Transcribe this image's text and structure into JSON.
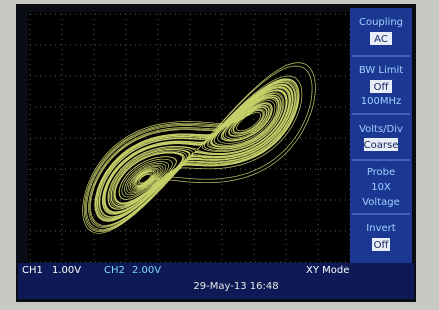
{
  "menu": [
    {
      "title": "Coupling",
      "boxed": "AC"
    },
    {
      "title": "BW Limit",
      "boxed": "Off",
      "note": "100MHz"
    },
    {
      "title": "Volts/Div",
      "boxed": "Coarse"
    },
    {
      "title": "Probe",
      "lines": [
        "10X",
        "Voltage"
      ]
    },
    {
      "title": "Invert",
      "boxed": "Off"
    }
  ],
  "status": {
    "ch1": "CH1",
    "ch1_scale": "1.00V",
    "ch2": "CH2",
    "ch2_scale": "2.00V",
    "datetime": "29-May-13 16:48",
    "mode": "XY Mode"
  }
}
